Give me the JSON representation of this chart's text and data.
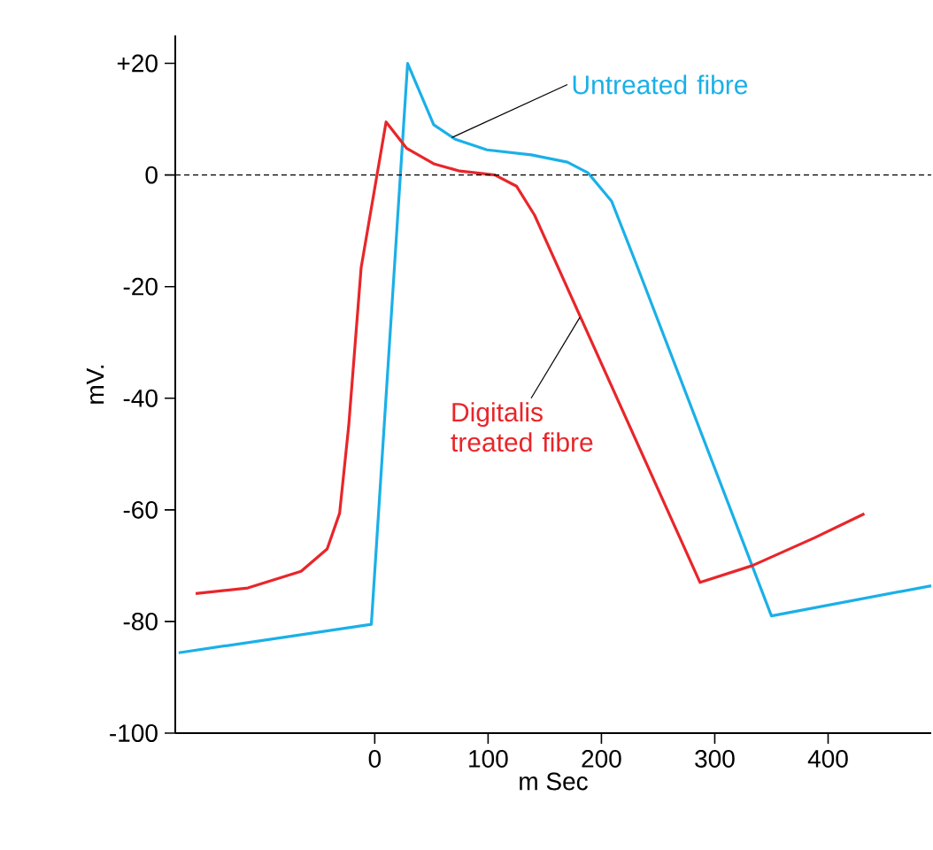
{
  "chart_data": {
    "type": "line",
    "xlabel": "m Sec",
    "ylabel": "mV.",
    "xlim": [
      -176,
      491
    ],
    "ylim": [
      -100,
      25
    ],
    "xticks": [
      0,
      100,
      200,
      300,
      400
    ],
    "yticks": [
      {
        "value": 20,
        "label": "+20"
      },
      0,
      -20,
      -40,
      -60,
      -80,
      -100
    ],
    "grid": false,
    "marker": "none",
    "line_style": "solid",
    "ref_lines": [
      {
        "axis": "y",
        "value": 0,
        "color": "#000000",
        "line_style": "dashed"
      }
    ],
    "series": [
      {
        "color": "#1ab0e8",
        "x": [
          -173,
          -3,
          29,
          52,
          71,
          99,
          138,
          170,
          188,
          209,
          232,
          350,
          491
        ],
        "values": [
          -85.6,
          -80.5,
          20,
          9,
          6.4,
          4.5,
          3.6,
          2.3,
          0.4,
          -4.7,
          -16.6,
          -79,
          -73.6
        ]
      },
      {
        "color": "#e8262a",
        "x": [
          -158,
          -112,
          -65,
          -42,
          -31,
          -23,
          -12,
          10,
          28,
          52,
          75,
          106,
          125,
          141,
          287,
          333,
          388,
          432
        ],
        "values": [
          -75,
          -74,
          -71,
          -67,
          -60.6,
          -45,
          -16.6,
          9.5,
          4.8,
          2,
          0.7,
          0,
          -2,
          -7.2,
          -73,
          -70,
          -65,
          -60.7
        ]
      }
    ],
    "annotations": [
      {
        "text": "Untreated fibre",
        "x": 68,
        "y": 6.7
      },
      {
        "text": "Digitalis treated fibre",
        "x": 181,
        "y": -25.5
      }
    ]
  }
}
